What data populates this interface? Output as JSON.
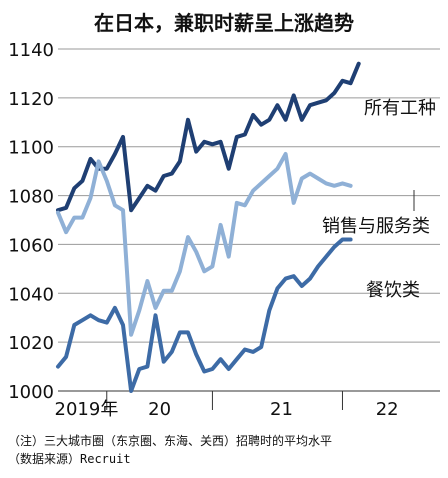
{
  "chart_data": {
    "type": "line",
    "title": "在日本，兼职时薪呈上涨趋势",
    "ylim": [
      1000,
      1140
    ],
    "yticks": [
      1000,
      1020,
      1040,
      1060,
      1080,
      1100,
      1120,
      1140
    ],
    "xlim": [
      0,
      47
    ],
    "year_ticks": [
      {
        "label": "2019年",
        "x": 3.5
      },
      {
        "label": "20",
        "x": 12.5
      },
      {
        "label": "21",
        "x": 27.5
      },
      {
        "label": "22",
        "x": 40.5
      }
    ],
    "year_boundaries": [
      6,
      19,
      35
    ],
    "grid": "horizontal",
    "notes": [
      "（注）三大城市圈（东京圈、东海、关西）招聘时的平均水平",
      "（数据来源）Recruit"
    ],
    "series": [
      {
        "name": "所有工种",
        "color": "#1f3f73",
        "values": [
          1074,
          1075,
          1083,
          1086,
          1095,
          1091,
          1091,
          1097,
          1104,
          1074,
          1079,
          1084,
          1082,
          1088,
          1089,
          1094,
          1111,
          1098,
          1102,
          1101,
          1102,
          1091,
          1104,
          1105,
          1113,
          1109,
          1111,
          1117,
          1111,
          1121,
          1111,
          1117,
          1118,
          1119,
          1122,
          1127,
          1126,
          1134
        ]
      },
      {
        "name": "销售与服务类",
        "color": "#8fb0d6",
        "values": [
          1073,
          1065,
          1071,
          1071,
          1079,
          1094,
          1086,
          1076,
          1074,
          1023,
          1033,
          1045,
          1034,
          1041,
          1041,
          1049,
          1063,
          1057,
          1049,
          1051,
          1068,
          1055,
          1077,
          1076,
          1082,
          1085,
          1088,
          1091,
          1097,
          1077,
          1087,
          1089,
          1087,
          1085,
          1084,
          1085,
          1084
        ]
      },
      {
        "name": "餐饮类",
        "color": "#3d6ba6",
        "values": [
          1010,
          1014,
          1027,
          1029,
          1031,
          1029,
          1028,
          1034,
          1027,
          1000,
          1009,
          1010,
          1031,
          1012,
          1016,
          1024,
          1024,
          1015,
          1008,
          1009,
          1013,
          1009,
          1013,
          1017,
          1016,
          1018,
          1033,
          1042,
          1046,
          1047,
          1043,
          1046,
          1051,
          1055,
          1059,
          1062,
          1062
        ]
      }
    ]
  }
}
